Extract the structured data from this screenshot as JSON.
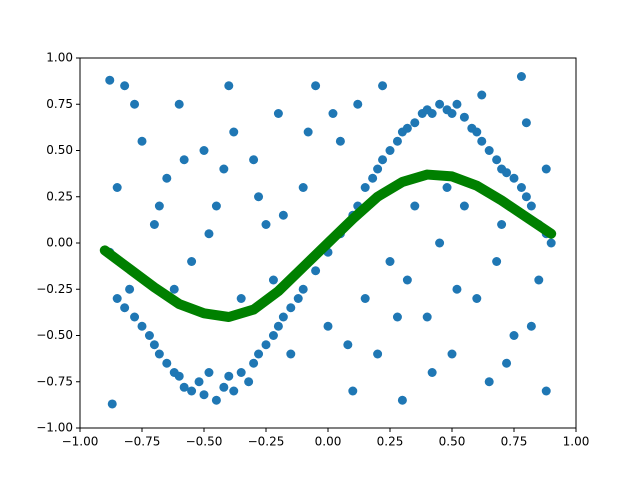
{
  "chart_data": {
    "type": "scatter",
    "xlim": [
      -1,
      1
    ],
    "ylim": [
      -1,
      1
    ],
    "xticks": [
      {
        "value": -1,
        "label": "−1.00"
      },
      {
        "value": -0.75,
        "label": "−0.75"
      },
      {
        "value": -0.5,
        "label": "−0.50"
      },
      {
        "value": -0.25,
        "label": "−0.25"
      },
      {
        "value": 0,
        "label": "0.00"
      },
      {
        "value": 0.25,
        "label": "0.25"
      },
      {
        "value": 0.5,
        "label": "0.50"
      },
      {
        "value": 0.75,
        "label": "0.75"
      },
      {
        "value": 1,
        "label": "1.00"
      }
    ],
    "yticks": [
      {
        "value": -1,
        "label": "−1.00"
      },
      {
        "value": -0.75,
        "label": "−0.75"
      },
      {
        "value": -0.5,
        "label": "−0.50"
      },
      {
        "value": -0.25,
        "label": "−0.25"
      },
      {
        "value": 0,
        "label": "0.00"
      },
      {
        "value": 0.25,
        "label": "0.25"
      },
      {
        "value": 0.5,
        "label": "0.50"
      },
      {
        "value": 0.75,
        "label": "0.75"
      },
      {
        "value": 1,
        "label": "1.00"
      }
    ],
    "series": [
      {
        "kind": "scatter",
        "color": "#1f77b4",
        "x": [
          -0.88,
          -0.85,
          -0.82,
          -0.8,
          -0.78,
          -0.75,
          -0.72,
          -0.7,
          -0.68,
          -0.65,
          -0.62,
          -0.6,
          -0.58,
          -0.55,
          -0.52,
          -0.5,
          -0.48,
          -0.45,
          -0.42,
          -0.4,
          -0.38,
          -0.35,
          -0.32,
          -0.3,
          -0.28,
          -0.25,
          -0.22,
          -0.2,
          -0.18,
          -0.15,
          -0.12,
          -0.1,
          -0.05,
          0.0,
          0.05,
          0.1,
          0.12,
          0.15,
          0.18,
          0.2,
          0.22,
          0.25,
          0.28,
          0.3,
          0.32,
          0.35,
          0.38,
          0.4,
          0.42,
          0.45,
          0.48,
          0.5,
          0.52,
          0.55,
          0.58,
          0.6,
          0.62,
          0.65,
          0.68,
          0.7,
          0.72,
          0.75,
          0.78,
          0.8,
          0.82,
          0.85,
          0.88,
          0.9,
          -0.88,
          -0.82,
          -0.75,
          -0.7,
          -0.65,
          -0.6,
          -0.55,
          -0.5,
          -0.45,
          -0.4,
          -0.35,
          -0.3,
          -0.25,
          -0.2,
          -0.15,
          -0.1,
          -0.05,
          0.0,
          0.05,
          0.1,
          0.15,
          0.2,
          0.25,
          0.3,
          0.35,
          0.4,
          0.45,
          0.5,
          0.55,
          0.6,
          0.65,
          0.7,
          0.75,
          0.8,
          0.85,
          0.88,
          -0.85,
          -0.78,
          -0.68,
          -0.58,
          -0.48,
          -0.38,
          -0.28,
          -0.18,
          -0.08,
          0.02,
          0.12,
          0.22,
          0.32,
          0.42,
          0.52,
          0.62,
          0.72,
          0.82,
          -0.87,
          -0.62,
          -0.42,
          -0.22,
          0.08,
          0.28,
          0.48,
          0.68,
          0.78,
          0.88
        ],
        "values": [
          -0.05,
          -0.3,
          -0.35,
          -0.25,
          -0.4,
          -0.45,
          -0.5,
          -0.55,
          -0.6,
          -0.65,
          -0.7,
          -0.72,
          -0.78,
          -0.8,
          -0.75,
          -0.82,
          -0.7,
          -0.85,
          -0.78,
          -0.72,
          -0.8,
          -0.7,
          -0.75,
          -0.65,
          -0.6,
          -0.55,
          -0.5,
          -0.45,
          -0.4,
          -0.35,
          -0.3,
          -0.25,
          -0.15,
          -0.05,
          0.05,
          0.15,
          0.2,
          0.3,
          0.35,
          0.4,
          0.45,
          0.5,
          0.55,
          0.6,
          0.62,
          0.65,
          0.7,
          0.72,
          0.7,
          0.75,
          0.72,
          0.7,
          0.75,
          0.68,
          0.62,
          0.6,
          0.55,
          0.5,
          0.45,
          0.4,
          0.38,
          0.35,
          0.3,
          0.25,
          0.2,
          0.1,
          0.05,
          0.0,
          0.88,
          0.85,
          0.55,
          0.1,
          0.35,
          0.75,
          -0.1,
          0.5,
          0.2,
          0.85,
          -0.3,
          0.45,
          0.1,
          0.7,
          -0.6,
          0.3,
          0.85,
          -0.45,
          0.55,
          -0.8,
          -0.3,
          -0.6,
          -0.1,
          -0.85,
          0.2,
          -0.4,
          0.0,
          -0.6,
          0.2,
          -0.3,
          -0.75,
          0.1,
          -0.5,
          0.65,
          -0.2,
          -0.8,
          0.3,
          0.75,
          0.2,
          0.45,
          0.05,
          0.6,
          0.25,
          0.15,
          0.6,
          0.7,
          0.75,
          0.85,
          -0.2,
          -0.7,
          -0.25,
          0.8,
          -0.65,
          -0.45,
          -0.87,
          -0.25,
          0.4,
          -0.2,
          -0.55,
          -0.4,
          0.3,
          -0.1,
          0.9,
          0.4
        ]
      },
      {
        "kind": "line",
        "color": "#008000",
        "x": [
          -0.9,
          -0.8,
          -0.7,
          -0.6,
          -0.5,
          -0.4,
          -0.3,
          -0.2,
          -0.1,
          0.0,
          0.1,
          0.2,
          0.3,
          0.4,
          0.5,
          0.6,
          0.7,
          0.8,
          0.9
        ],
        "values": [
          -0.04,
          -0.14,
          -0.24,
          -0.33,
          -0.38,
          -0.4,
          -0.36,
          -0.26,
          -0.13,
          0.0,
          0.13,
          0.25,
          0.33,
          0.37,
          0.36,
          0.31,
          0.23,
          0.14,
          0.05
        ]
      }
    ]
  }
}
